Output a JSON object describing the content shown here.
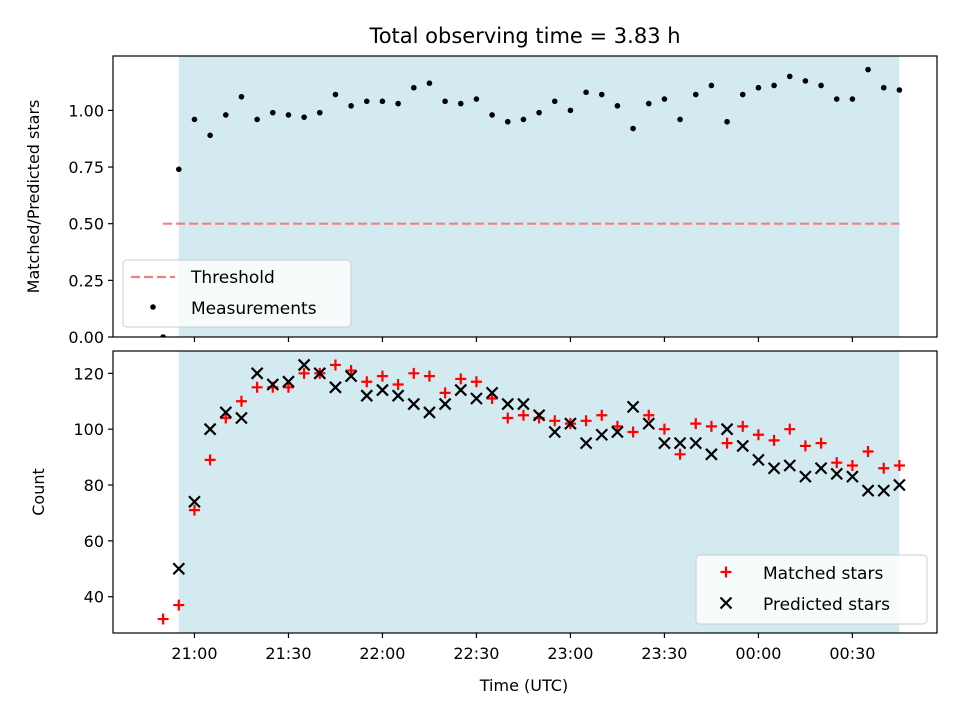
{
  "chart_data": [
    {
      "type": "scatter",
      "title": "Total observing time = 3.83 h",
      "xlabel": "",
      "ylabel": "Matched/Predicted stars",
      "ylim": [
        0,
        1.24
      ],
      "yticks": [
        "0.00",
        "0.25",
        "0.50",
        "0.75",
        "1.00"
      ],
      "highlight_span": [
        "20:55",
        "24:45"
      ],
      "highlight_color": "#d3eaf1",
      "threshold": {
        "name": "Threshold",
        "y": 0.5,
        "x_range": [
          "20:50",
          "24:45"
        ],
        "color": "#f08080"
      },
      "series": [
        {
          "name": "Measurements",
          "color": "#000000",
          "x": [
            "20:50",
            "20:55",
            "21:00",
            "21:05",
            "21:10",
            "21:15",
            "21:20",
            "21:25",
            "21:30",
            "21:35",
            "21:40",
            "21:45",
            "21:50",
            "21:55",
            "22:00",
            "22:05",
            "22:10",
            "22:15",
            "22:20",
            "22:25",
            "22:30",
            "22:35",
            "22:40",
            "22:45",
            "22:50",
            "22:55",
            "23:00",
            "23:05",
            "23:10",
            "23:15",
            "23:20",
            "23:25",
            "23:30",
            "23:35",
            "23:40",
            "23:45",
            "23:50",
            "23:55",
            "24:00",
            "24:05",
            "24:10",
            "24:15",
            "24:20",
            "24:25",
            "24:30",
            "24:35",
            "24:40",
            "24:45"
          ],
          "y": [
            0.0,
            0.74,
            0.96,
            0.89,
            0.98,
            1.06,
            0.96,
            0.99,
            0.98,
            0.97,
            0.99,
            1.07,
            1.02,
            1.04,
            1.04,
            1.03,
            1.1,
            1.12,
            1.04,
            1.03,
            1.05,
            0.98,
            0.95,
            0.96,
            0.99,
            1.04,
            1.0,
            1.08,
            1.07,
            1.02,
            0.92,
            1.03,
            1.05,
            0.96,
            1.07,
            1.11,
            0.95,
            1.07,
            1.1,
            1.11,
            1.15,
            1.13,
            1.11,
            1.05,
            1.05,
            1.18,
            1.1,
            1.09
          ]
        }
      ]
    },
    {
      "type": "scatter",
      "title": "",
      "xlabel": "Time (UTC)",
      "ylabel": "Count",
      "ylim": [
        27,
        128
      ],
      "yticks": [
        "40",
        "60",
        "80",
        "100",
        "120"
      ],
      "xticks": [
        "21:00",
        "21:30",
        "22:00",
        "22:30",
        "23:00",
        "23:30",
        "00:00",
        "00:30"
      ],
      "highlight_span": [
        "20:55",
        "24:45"
      ],
      "highlight_color": "#d3eaf1",
      "series": [
        {
          "name": "Matched stars",
          "marker": "plus",
          "color": "#ff0000",
          "x": [
            "20:50",
            "20:55",
            "21:00",
            "21:05",
            "21:10",
            "21:15",
            "21:20",
            "21:25",
            "21:30",
            "21:35",
            "21:40",
            "21:45",
            "21:50",
            "21:55",
            "22:00",
            "22:05",
            "22:10",
            "22:15",
            "22:20",
            "22:25",
            "22:30",
            "22:35",
            "22:40",
            "22:45",
            "22:50",
            "22:55",
            "23:00",
            "23:05",
            "23:10",
            "23:15",
            "23:20",
            "23:25",
            "23:30",
            "23:35",
            "23:40",
            "23:45",
            "23:50",
            "23:55",
            "24:00",
            "24:05",
            "24:10",
            "24:15",
            "24:20",
            "24:25",
            "24:30",
            "24:35",
            "24:40",
            "24:45"
          ],
          "y": [
            32,
            37,
            71,
            89,
            104,
            110,
            115,
            115,
            115,
            120,
            120,
            123,
            121,
            117,
            119,
            116,
            120,
            119,
            113,
            118,
            117,
            111,
            104,
            105,
            104,
            103,
            102,
            103,
            105,
            101,
            99,
            105,
            100,
            91,
            102,
            101,
            95,
            101,
            98,
            96,
            100,
            94,
            95,
            88,
            87,
            92,
            86,
            87
          ]
        },
        {
          "name": "Predicted stars",
          "marker": "x",
          "color": "#000000",
          "x": [
            "20:55",
            "21:00",
            "21:05",
            "21:10",
            "21:15",
            "21:20",
            "21:25",
            "21:30",
            "21:35",
            "21:40",
            "21:45",
            "21:50",
            "21:55",
            "22:00",
            "22:05",
            "22:10",
            "22:15",
            "22:20",
            "22:25",
            "22:30",
            "22:35",
            "22:40",
            "22:45",
            "22:50",
            "22:55",
            "23:00",
            "23:05",
            "23:10",
            "23:15",
            "23:20",
            "23:25",
            "23:30",
            "23:35",
            "23:40",
            "23:45",
            "23:50",
            "23:55",
            "24:00",
            "24:05",
            "24:10",
            "24:15",
            "24:20",
            "24:25",
            "24:30",
            "24:35",
            "24:40",
            "24:45"
          ],
          "y": [
            50,
            74,
            100,
            106,
            104,
            120,
            116,
            117,
            123,
            120,
            115,
            119,
            112,
            114,
            112,
            109,
            106,
            109,
            114,
            111,
            113,
            109,
            109,
            105,
            99,
            102,
            95,
            98,
            99,
            108,
            102,
            95,
            95,
            95,
            91,
            100,
            94,
            89,
            86,
            87,
            83,
            86,
            84,
            83,
            78,
            78,
            80
          ]
        }
      ]
    }
  ]
}
